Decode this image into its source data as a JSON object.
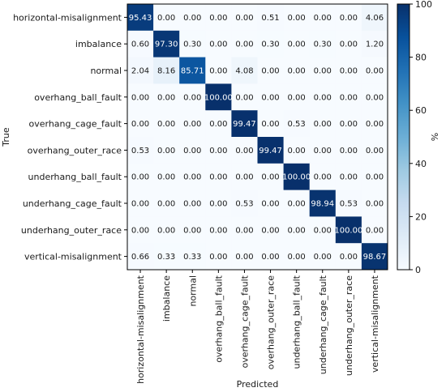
{
  "chart_data": {
    "type": "heatmap",
    "xlabel": "Predicted",
    "ylabel": "True",
    "categories": [
      "horizontal-misalignment",
      "imbalance",
      "normal",
      "overhang_ball_fault",
      "overhang_cage_fault",
      "overhang_outer_race",
      "underhang_ball_fault",
      "underhang_cage_fault",
      "underhang_outer_race",
      "vertical-misalignment"
    ],
    "cell_labels": [
      [
        "95.43",
        "0.00",
        "0.00",
        "0.00",
        "0.00",
        "0.51",
        "0.00",
        "0.00",
        "0.00",
        "4.06"
      ],
      [
        "0.60",
        "97.30",
        "0.30",
        "0.00",
        "0.00",
        "0.30",
        "0.00",
        "0.30",
        "0.00",
        "1.20"
      ],
      [
        "2.04",
        "8.16",
        "85.71",
        "0.00",
        "4.08",
        "0.00",
        "0.00",
        "0.00",
        "0.00",
        "0.00"
      ],
      [
        "0.00",
        "0.00",
        "0.00",
        "100.00",
        "0.00",
        "0.00",
        "0.00",
        "0.00",
        "0.00",
        "0.00"
      ],
      [
        "0.00",
        "0.00",
        "0.00",
        "0.00",
        "99.47",
        "0.00",
        "0.53",
        "0.00",
        "0.00",
        "0.00"
      ],
      [
        "0.53",
        "0.00",
        "0.00",
        "0.00",
        "0.00",
        "99.47",
        "0.00",
        "0.00",
        "0.00",
        "0.00"
      ],
      [
        "0.00",
        "0.00",
        "0.00",
        "0.00",
        "0.00",
        "0.00",
        "100.00",
        "0.00",
        "0.00",
        "0.00"
      ],
      [
        "0.00",
        "0.00",
        "0.00",
        "0.00",
        "0.53",
        "0.00",
        "0.00",
        "98.94",
        "0.53",
        "0.00"
      ],
      [
        "0.00",
        "0.00",
        "0.00",
        "0.00",
        "0.00",
        "0.00",
        "0.00",
        "0.00",
        "100.00",
        "0.00"
      ],
      [
        "0.66",
        "0.33",
        "0.33",
        "0.00",
        "0.00",
        "0.00",
        "0.00",
        "0.00",
        "0.00",
        "98.67"
      ]
    ],
    "colorbar": {
      "label": "%",
      "range": [
        0,
        100
      ],
      "ticks": [
        "0",
        "20",
        "40",
        "60",
        "80",
        "100"
      ],
      "colors": [
        "#f7fbff",
        "#deebf7",
        "#c6dbef",
        "#9ecae1",
        "#6baed6",
        "#4292c6",
        "#2171b5",
        "#08519c",
        "#08306b"
      ]
    }
  }
}
